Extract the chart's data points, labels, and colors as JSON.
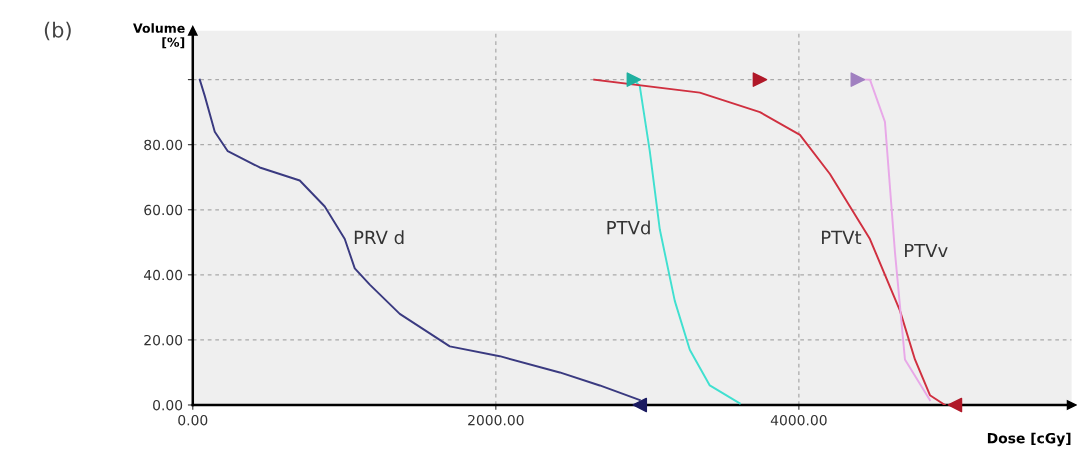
{
  "chart_data": {
    "type": "line",
    "title": "(b)",
    "xlabel": "Dose [cGy]",
    "ylabel": "Volume\n[%]",
    "xlim": [
      0,
      5800
    ],
    "ylim": [
      0,
      115
    ],
    "xticks": [
      {
        "value": 0,
        "label": "0.00"
      },
      {
        "value": 2000,
        "label": "2000.00"
      },
      {
        "value": 4000,
        "label": "4000.00"
      }
    ],
    "yticks": [
      {
        "value": 0,
        "label": "0.00"
      },
      {
        "value": 20,
        "label": "20.00"
      },
      {
        "value": 40,
        "label": "40.00"
      },
      {
        "value": 60,
        "label": "60.00"
      },
      {
        "value": 80,
        "label": "80.00"
      },
      {
        "value": 100,
        "label": null
      }
    ],
    "grid": true,
    "line_style": "solid",
    "series": [
      {
        "name": "PRV d",
        "color": "#3a3a80",
        "x": [
          46,
          79,
          145,
          231,
          442,
          706,
          871,
          1003,
          1069,
          1168,
          1366,
          1696,
          2026,
          2422,
          2686,
          2950
        ],
        "values": [
          100,
          95,
          84,
          78,
          73,
          69,
          61,
          51,
          42,
          37,
          28,
          18,
          15,
          10,
          6,
          1.5
        ]
      },
      {
        "name": "PTVd",
        "color": "#40e0d0",
        "x": [
          2911,
          2950,
          3016,
          3082,
          3181,
          3280,
          3412,
          3610
        ],
        "values": [
          100,
          98,
          78,
          54,
          32,
          17,
          6,
          0.5
        ]
      },
      {
        "name": "PTVt",
        "color": "#d03040",
        "x": [
          2650,
          3346,
          3743,
          4007,
          4205,
          4469,
          4667,
          4766,
          4865,
          4964
        ],
        "values": [
          100,
          96,
          90,
          83,
          71,
          51,
          29,
          14,
          3,
          0
        ]
      },
      {
        "name": "PTVv",
        "color": "#e8a8e8",
        "x": [
          4389,
          4469,
          4568,
          4634,
          4700,
          4865
        ],
        "values": [
          100,
          100,
          87,
          47,
          14,
          1.5
        ]
      },
      {
        "type": "scatter",
        "marker": "triangle",
        "color": "#1a1a60",
        "x": [
          2950
        ],
        "values": [
          0
        ]
      },
      {
        "type": "scatter",
        "marker": "triangle",
        "color": "#20b0a0",
        "x": [
          2911
        ],
        "values": [
          100
        ]
      },
      {
        "type": "scatter",
        "marker": "triangle",
        "color": "#b01828",
        "x": [
          3743,
          5030
        ],
        "values": [
          100,
          0
        ]
      },
      {
        "type": "scatter",
        "marker": "triangle",
        "color": "#a080c0",
        "x": [
          4389
        ],
        "values": [
          100
        ]
      }
    ]
  }
}
